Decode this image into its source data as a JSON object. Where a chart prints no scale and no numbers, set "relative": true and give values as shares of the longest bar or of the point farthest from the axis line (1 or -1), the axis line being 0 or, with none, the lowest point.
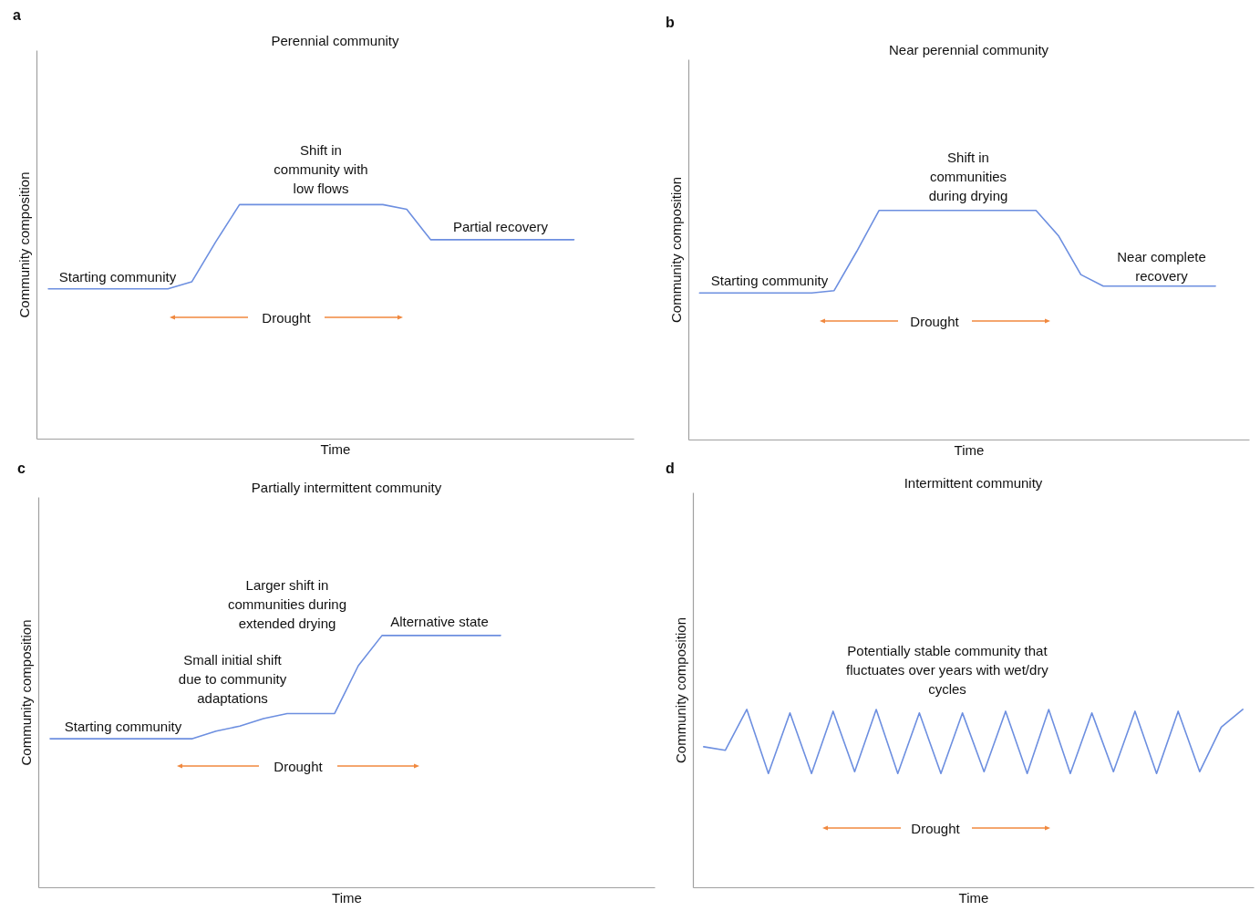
{
  "chart_data": [
    {
      "type": "line",
      "title": "Perennial community",
      "xlabel": "Time",
      "ylabel": "Community composition",
      "relative": true,
      "categories": [
        null,
        null,
        null,
        null,
        null,
        null,
        null,
        null,
        null,
        null,
        null,
        null,
        null,
        null,
        null,
        null,
        null,
        null,
        null,
        null,
        null,
        null,
        null,
        null,
        null
      ],
      "series": [
        {
          "color": "#6d8fe0",
          "values": [
            0.64,
            0.64,
            0.64,
            0.64,
            0.64,
            0.64,
            0.67,
            0.84,
            1,
            1,
            1,
            1,
            1,
            1,
            1,
            0.98,
            0.85,
            0.85,
            0.85,
            0.85,
            0.85,
            0.85,
            0.85,
            null,
            null
          ]
        }
      ],
      "annotations": [
        "a",
        "Shift in\ncommunity with\nlow flows",
        "Partial recovery",
        "Starting community",
        "Drought"
      ]
    },
    {
      "type": "line",
      "title": "Near perennial community",
      "xlabel": "Time",
      "ylabel": "Community composition",
      "relative": true,
      "categories": [
        null,
        null,
        null,
        null,
        null,
        null,
        null,
        null,
        null,
        null,
        null,
        null,
        null,
        null,
        null,
        null,
        null,
        null,
        null,
        null,
        null,
        null,
        null,
        null,
        null
      ],
      "series": [
        {
          "color": "#6d8fe0",
          "values": [
            0.64,
            0.64,
            0.64,
            0.64,
            0.64,
            0.64,
            0.65,
            0.82,
            1,
            1,
            1,
            1,
            1,
            1,
            1,
            1,
            0.89,
            0.72,
            0.67,
            0.67,
            0.67,
            0.67,
            0.67,
            0.67,
            null
          ]
        }
      ],
      "annotations": [
        "b",
        "Shift in\ncommunities\nduring drying",
        "Near complete\nrecovery",
        "Starting community",
        "Drought"
      ]
    },
    {
      "type": "line",
      "title": "Partially intermittent community",
      "xlabel": "Time",
      "ylabel": "Community composition",
      "relative": true,
      "categories": [
        null,
        null,
        null,
        null,
        null,
        null,
        null,
        null,
        null,
        null,
        null,
        null,
        null,
        null,
        null,
        null,
        null,
        null,
        null,
        null,
        null,
        null,
        null,
        null,
        null,
        null
      ],
      "series": [
        {
          "color": "#6d8fe0",
          "values": [
            0.59,
            0.59,
            0.59,
            0.59,
            0.59,
            0.59,
            0.59,
            0.62,
            0.64,
            0.67,
            0.69,
            0.69,
            0.69,
            0.88,
            1,
            1,
            1,
            1,
            1,
            1,
            null,
            null,
            null,
            null,
            null,
            null
          ]
        }
      ],
      "annotations": [
        "c",
        "Larger shift in\ncommunities during\nextended drying",
        "Small initial shift\ndue to community\nadaptations",
        "Alternative state",
        "Starting community",
        "Drought"
      ]
    },
    {
      "type": "line",
      "title": "Intermittent community",
      "xlabel": "Time",
      "ylabel": "Community composition",
      "relative": true,
      "categories": [
        null,
        null,
        null,
        null,
        null,
        null,
        null,
        null,
        null,
        null,
        null,
        null,
        null,
        null,
        null,
        null,
        null,
        null,
        null,
        null,
        null,
        null,
        null,
        null,
        null,
        null
      ],
      "series": [
        {
          "color": "#6d8fe0",
          "values": [
            0.79,
            0.77,
            1,
            0.64,
            0.98,
            0.64,
            0.99,
            0.65,
            1,
            0.64,
            0.98,
            0.64,
            0.98,
            0.65,
            0.99,
            0.64,
            1,
            0.64,
            0.98,
            0.65,
            0.99,
            0.64,
            0.99,
            0.65,
            0.9,
            1
          ]
        }
      ],
      "annotations": [
        "d",
        "Potentially stable community that\nfluctuates over years with wet/dry\ncycles",
        "Drought"
      ]
    }
  ]
}
